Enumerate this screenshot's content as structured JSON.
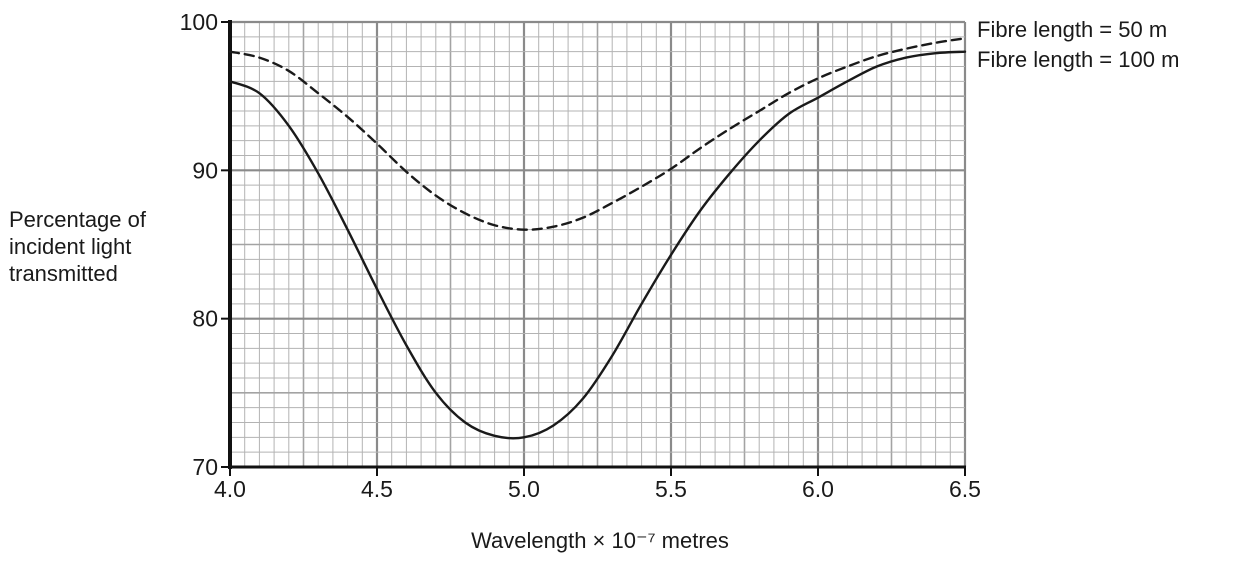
{
  "chart_data": {
    "type": "line",
    "title": "",
    "xlabel": "Wavelength × 10⁻⁷ metres",
    "ylabel_lines": [
      "Percentage of",
      "incident light",
      "transmitted"
    ],
    "xlim": [
      4.0,
      6.5
    ],
    "ylim": [
      70,
      100
    ],
    "x_ticks": [
      4.0,
      4.5,
      5.0,
      5.5,
      6.0,
      6.5
    ],
    "x_tick_labels": [
      "4.0",
      "4.5",
      "5.0",
      "5.5",
      "6.0",
      "6.5"
    ],
    "y_ticks": [
      70,
      80,
      90,
      100
    ],
    "y_tick_labels": [
      "70",
      "80",
      "90",
      "100"
    ],
    "grid": true,
    "grid_minor_x": 0.05,
    "grid_minor_y": 1,
    "legend_placement": "right of plot, top",
    "series": [
      {
        "name": "Fibre length = 50 m",
        "style": "dashed",
        "color": "#1a1a1a",
        "x": [
          4.0,
          4.1,
          4.2,
          4.3,
          4.4,
          4.5,
          4.6,
          4.7,
          4.8,
          4.9,
          5.0,
          5.1,
          5.2,
          5.3,
          5.4,
          5.5,
          5.6,
          5.7,
          5.8,
          5.9,
          6.0,
          6.1,
          6.2,
          6.3,
          6.4,
          6.5
        ],
        "y": [
          98.0,
          97.6,
          96.7,
          95.2,
          93.6,
          91.8,
          89.9,
          88.3,
          87.1,
          86.3,
          86.0,
          86.2,
          86.8,
          87.8,
          88.9,
          90.1,
          91.5,
          92.8,
          94.0,
          95.2,
          96.2,
          97.0,
          97.7,
          98.2,
          98.6,
          98.9
        ]
      },
      {
        "name": "Fibre length = 100 m",
        "style": "solid",
        "color": "#1a1a1a",
        "x": [
          4.0,
          4.1,
          4.2,
          4.3,
          4.4,
          4.5,
          4.6,
          4.7,
          4.8,
          4.9,
          5.0,
          5.1,
          5.2,
          5.3,
          5.4,
          5.5,
          5.6,
          5.7,
          5.8,
          5.9,
          6.0,
          6.1,
          6.2,
          6.3,
          6.4,
          6.5
        ],
        "y": [
          96.0,
          95.2,
          93.0,
          89.8,
          86.0,
          82.0,
          78.2,
          75.0,
          73.0,
          72.1,
          72.0,
          72.8,
          74.6,
          77.5,
          81.0,
          84.3,
          87.3,
          89.8,
          92.0,
          93.8,
          94.9,
          96.0,
          97.0,
          97.6,
          97.9,
          98.0
        ]
      }
    ]
  }
}
